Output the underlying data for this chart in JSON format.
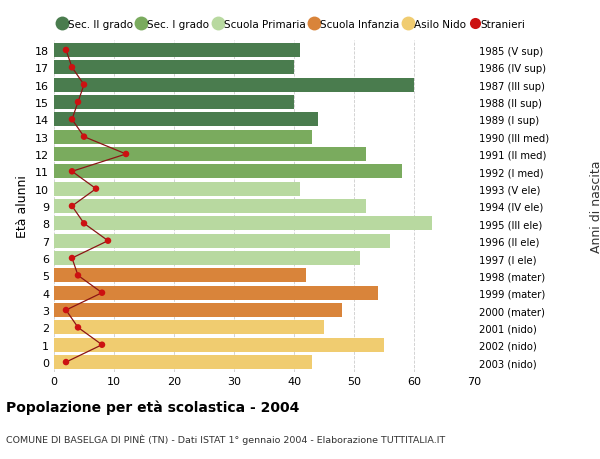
{
  "ages": [
    18,
    17,
    16,
    15,
    14,
    13,
    12,
    11,
    10,
    9,
    8,
    7,
    6,
    5,
    4,
    3,
    2,
    1,
    0
  ],
  "anni_nascita": [
    "1985 (V sup)",
    "1986 (IV sup)",
    "1987 (III sup)",
    "1988 (II sup)",
    "1989 (I sup)",
    "1990 (III med)",
    "1991 (II med)",
    "1992 (I med)",
    "1993 (V ele)",
    "1994 (IV ele)",
    "1995 (III ele)",
    "1996 (II ele)",
    "1997 (I ele)",
    "1998 (mater)",
    "1999 (mater)",
    "2000 (mater)",
    "2001 (nido)",
    "2002 (nido)",
    "2003 (nido)"
  ],
  "bar_values": [
    41,
    40,
    60,
    40,
    44,
    43,
    52,
    58,
    41,
    52,
    63,
    56,
    51,
    42,
    54,
    48,
    45,
    55,
    43
  ],
  "bar_colors": [
    "#4a7c4e",
    "#4a7c4e",
    "#4a7c4e",
    "#4a7c4e",
    "#4a7c4e",
    "#7aab5e",
    "#7aab5e",
    "#7aab5e",
    "#b8d9a0",
    "#b8d9a0",
    "#b8d9a0",
    "#b8d9a0",
    "#b8d9a0",
    "#d9843a",
    "#d9843a",
    "#d9843a",
    "#f0cc70",
    "#f0cc70",
    "#f0cc70"
  ],
  "stranieri": [
    2,
    3,
    5,
    4,
    3,
    5,
    12,
    3,
    7,
    3,
    5,
    9,
    3,
    4,
    8,
    2,
    4,
    8,
    2
  ],
  "legend_labels": [
    "Sec. II grado",
    "Sec. I grado",
    "Scuola Primaria",
    "Scuola Infanzia",
    "Asilo Nido",
    "Stranieri"
  ],
  "legend_colors": [
    "#4a7c4e",
    "#7aab5e",
    "#b8d9a0",
    "#d9843a",
    "#f0cc70",
    "#cc1111"
  ],
  "ylabel_left": "Età alunni",
  "ylabel_right": "Anni di nascita",
  "title": "Popolazione per età scolastica - 2004",
  "subtitle": "COMUNE DI BASELGA DI PINÈ (TN) - Dati ISTAT 1° gennaio 2004 - Elaborazione TUTTITALIA.IT",
  "xlim": [
    0,
    70
  ],
  "background_color": "#ffffff",
  "grid_color": "#cccccc",
  "bar_height": 0.82,
  "stranieri_line_color": "#8b1515",
  "stranieri_dot_color": "#cc1111"
}
